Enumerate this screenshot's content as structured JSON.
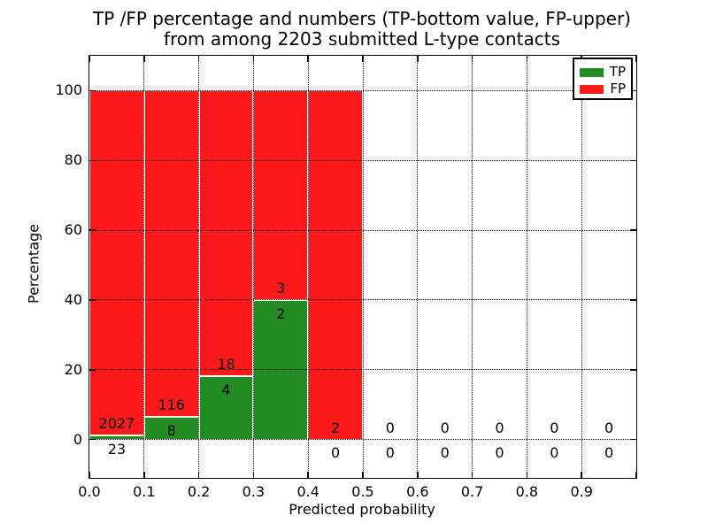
{
  "figure": {
    "title_line1": "TP /FP percentage and numbers (TP-bottom value, FP-upper)",
    "title_line2": "from among 2203 submitted L-type contacts",
    "xlabel": "Predicted probability",
    "ylabel": "Percentage"
  },
  "legend": {
    "items": [
      {
        "label": "TP",
        "color": "#228b22"
      },
      {
        "label": "FP",
        "color": "#fe1a1a"
      }
    ]
  },
  "chart_data": {
    "type": "bar",
    "stacked": true,
    "title": "TP /FP percentage and numbers (TP-bottom value, FP-upper) from among 2203 submitted L-type contacts",
    "xlabel": "Predicted probability",
    "ylabel": "Percentage",
    "xlim": [
      0,
      1.0
    ],
    "ylim": [
      -11,
      110
    ],
    "grid": "dotted",
    "legend_position": "upper right",
    "label_convention": "TP count below green top, FP count above green top; TP label below axis when bar is empty",
    "colors": {
      "tp": "#228b22",
      "fp": "#fe1a1a",
      "bar_edge": "#ffffff"
    },
    "x_tick_labels": [
      "0.0",
      "0.1",
      "0.2",
      "0.3",
      "0.4",
      "0.5",
      "0.6",
      "0.7",
      "0.8",
      "0.9"
    ],
    "y_tick_labels": [
      "0",
      "20",
      "40",
      "60",
      "80",
      "100"
    ],
    "x_tick_values": [
      0,
      0.1,
      0.2,
      0.3,
      0.4,
      0.5,
      0.6,
      0.7,
      0.8,
      0.9
    ],
    "y_tick_values": [
      0,
      20,
      40,
      60,
      80,
      100
    ],
    "x_tick_marks": [
      0,
      0.1,
      0.2,
      0.3,
      0.4,
      0.5,
      0.6,
      0.7,
      0.8,
      0.9,
      1.0
    ],
    "bin_width": 0.1,
    "series": [
      {
        "name": "TP",
        "counts": [
          23,
          8,
          4,
          2,
          0,
          0,
          0,
          0,
          0,
          0
        ]
      },
      {
        "name": "FP",
        "counts": [
          2027,
          116,
          18,
          3,
          2,
          0,
          0,
          0,
          0,
          0
        ]
      }
    ],
    "bins": [
      {
        "x_start": 0.0,
        "x_end": 0.1,
        "tp_count": 23,
        "fp_count": 2027,
        "tp_pct": 1.12,
        "fp_pct": 98.88
      },
      {
        "x_start": 0.1,
        "x_end": 0.2,
        "tp_count": 8,
        "fp_count": 116,
        "tp_pct": 6.45,
        "fp_pct": 93.55
      },
      {
        "x_start": 0.2,
        "x_end": 0.3,
        "tp_count": 4,
        "fp_count": 18,
        "tp_pct": 18.18,
        "fp_pct": 81.82
      },
      {
        "x_start": 0.3,
        "x_end": 0.4,
        "tp_count": 2,
        "fp_count": 3,
        "tp_pct": 40.0,
        "fp_pct": 60.0
      },
      {
        "x_start": 0.4,
        "x_end": 0.5,
        "tp_count": 0,
        "fp_count": 2,
        "tp_pct": 0.0,
        "fp_pct": 100.0
      },
      {
        "x_start": 0.5,
        "x_end": 0.6,
        "tp_count": 0,
        "fp_count": 0,
        "tp_pct": 0.0,
        "fp_pct": 0.0
      },
      {
        "x_start": 0.6,
        "x_end": 0.7,
        "tp_count": 0,
        "fp_count": 0,
        "tp_pct": 0.0,
        "fp_pct": 0.0
      },
      {
        "x_start": 0.7,
        "x_end": 0.8,
        "tp_count": 0,
        "fp_count": 0,
        "tp_pct": 0.0,
        "fp_pct": 0.0
      },
      {
        "x_start": 0.8,
        "x_end": 0.9,
        "tp_count": 0,
        "fp_count": 0,
        "tp_pct": 0.0,
        "fp_pct": 0.0
      },
      {
        "x_start": 0.9,
        "x_end": 1.0,
        "tp_count": 0,
        "fp_count": 0,
        "tp_pct": 0.0,
        "fp_pct": 0.0
      }
    ]
  }
}
